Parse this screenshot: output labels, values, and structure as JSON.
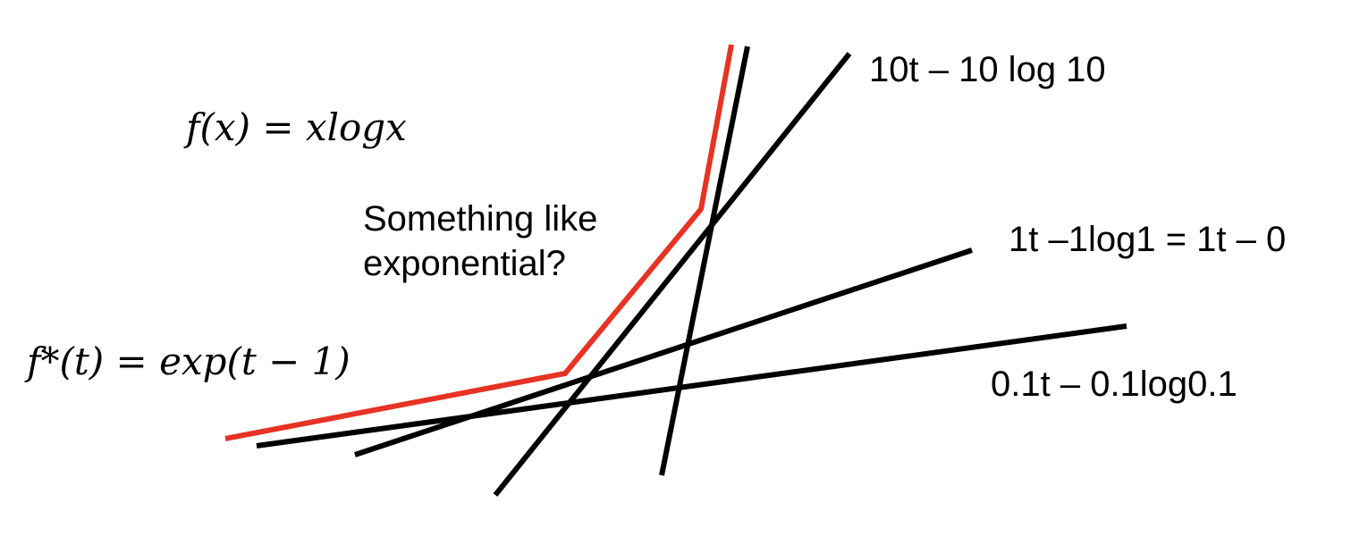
{
  "equations": {
    "primal": "f(x) = xlogx",
    "conjugate": "f*(t) = exp(t − 1)"
  },
  "note": {
    "line1": "Something like",
    "line2": "exponential?"
  },
  "tangent_lines": [
    {
      "label": "10t – 10 log 10",
      "color": "#000000"
    },
    {
      "label": "1t –1log1 = 1t – 0",
      "color": "#000000"
    },
    {
      "label": "0.1t – 0.1log0.1",
      "color": "#000000"
    }
  ],
  "envelope": {
    "color": "#e63323"
  },
  "colors": {
    "line": "#000000",
    "envelope": "#e63323"
  }
}
